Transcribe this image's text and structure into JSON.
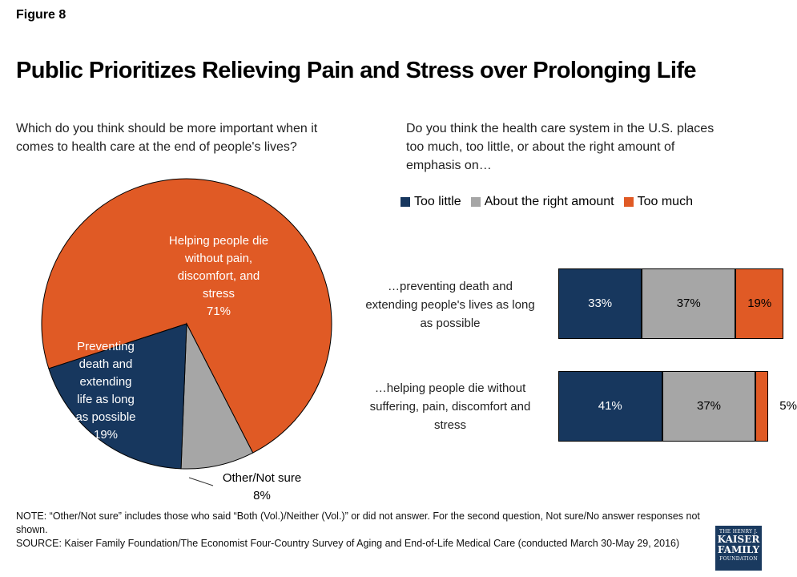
{
  "figure_label": "Figure 8",
  "title": "Public Prioritizes Relieving Pain and Stress over Prolonging Life",
  "pie_question": "Which do you think should be more important when it comes to health care at the end of people's lives?",
  "bar_question": "Do you think the health care system in the U.S. places too much, too little, or about the right amount of emphasis on…",
  "note": "NOTE: “Other/Not sure” includes those who said “Both (Vol.)/Neither (Vol.)” or did not answer. For the second question, Not sure/No answer responses not shown.",
  "source": "SOURCE: Kaiser Family Foundation/The Economist Four-Country Survey of Aging and End-of-Life Medical Care (conducted March 30-May 29, 2016)",
  "logo": {
    "line1": "THE HENRY J.",
    "line2": "KAISER",
    "line3": "FAMILY",
    "line4": "FOUNDATION"
  },
  "colors": {
    "navy": "#17375e",
    "gray": "#a6a6a6",
    "orange": "#e05a25"
  },
  "chart_data": [
    {
      "type": "pie",
      "title": "Which do you think should be more important when it comes to health care at the end of people's lives?",
      "slices": [
        {
          "label": "Helping people die without pain, discomfort, and stress",
          "value": 71,
          "display": "71%",
          "color": "#e05a25",
          "label_lines": [
            "Helping people die",
            "without pain,",
            "discomfort, and",
            "stress",
            "71%"
          ]
        },
        {
          "label": "Other/Not sure",
          "value": 8,
          "display": "8%",
          "color": "#a6a6a6",
          "label_lines": [
            "Other/Not sure",
            "8%"
          ]
        },
        {
          "label": "Preventing death and extending life as long as possible",
          "value": 19,
          "display": "19%",
          "color": "#17375e",
          "label_lines": [
            "Preventing",
            "death and",
            "extending",
            "life as long",
            "as possible",
            "19%"
          ]
        }
      ]
    },
    {
      "type": "bar",
      "orientation": "horizontal",
      "stacked": true,
      "title": "Do you think the health care system in the U.S. places too much, too little, or about the right amount of emphasis on…",
      "legend": [
        "Too little",
        "About the right amount",
        "Too much"
      ],
      "legend_position": "top",
      "categories": [
        {
          "lines": [
            "…preventing death and",
            "extending people's lives as long",
            "as possible"
          ]
        },
        {
          "lines": [
            "…helping people die without",
            "suffering, pain, discomfort and",
            "stress"
          ]
        }
      ],
      "series": [
        {
          "name": "Too little",
          "color": "#17375e",
          "values": [
            33,
            41
          ],
          "labels": [
            "33%",
            "41%"
          ]
        },
        {
          "name": "About the right amount",
          "color": "#a6a6a6",
          "values": [
            37,
            37
          ],
          "labels": [
            "37%",
            "37%"
          ]
        },
        {
          "name": "Too much",
          "color": "#e05a25",
          "values": [
            19,
            5
          ],
          "labels": [
            "19%",
            "5%"
          ]
        }
      ]
    }
  ]
}
